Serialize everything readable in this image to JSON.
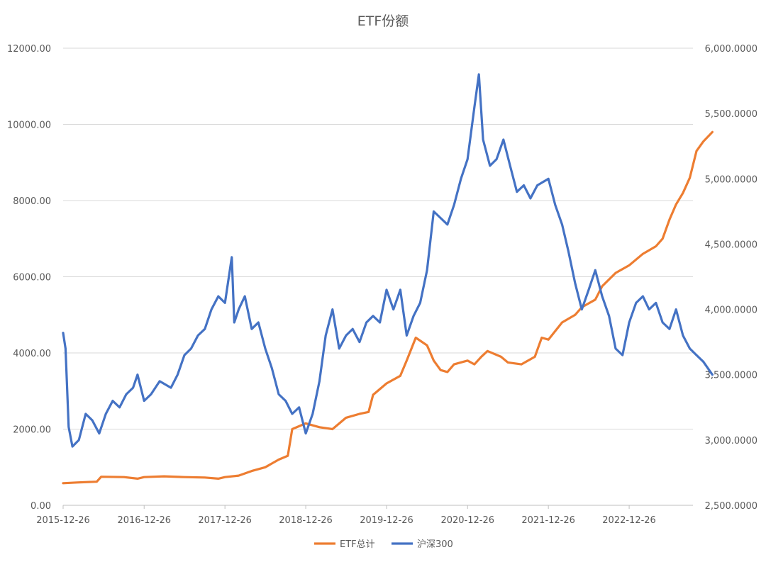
{
  "chart_data": {
    "type": "line",
    "title": "ETF份额",
    "x_ticks": [
      "2015-12-26",
      "2016-12-26",
      "2017-12-26",
      "2018-12-26",
      "2019-12-26",
      "2020-12-26",
      "2021-12-26",
      "2022-12-26"
    ],
    "y_left": {
      "ylim": [
        0,
        12000
      ],
      "ticks": [
        "0.00",
        "2000.00",
        "4000.00",
        "6000.00",
        "8000.00",
        "10000.00",
        "12000.00"
      ]
    },
    "y_right": {
      "ylim": [
        2500,
        6000
      ],
      "ticks": [
        "2,500.0000",
        "3,000.0000",
        "3,500.0000",
        "4,000.0000",
        "4,500.0000",
        "5,000.0000",
        "5,500.0000",
        "6,000.0000"
      ]
    },
    "grid": true,
    "legend_position": "bottom",
    "series": [
      {
        "name": "ETF总计",
        "axis": "left",
        "color": "#ED7D31",
        "points": [
          [
            "2015-12-26",
            580
          ],
          [
            "2016-02-26",
            600
          ],
          [
            "2016-05-26",
            620
          ],
          [
            "2016-06-15",
            750
          ],
          [
            "2016-09-26",
            740
          ],
          [
            "2016-11-26",
            700
          ],
          [
            "2016-12-26",
            740
          ],
          [
            "2017-03-26",
            760
          ],
          [
            "2017-06-26",
            740
          ],
          [
            "2017-09-26",
            730
          ],
          [
            "2017-11-26",
            700
          ],
          [
            "2017-12-26",
            740
          ],
          [
            "2018-02-26",
            780
          ],
          [
            "2018-04-26",
            900
          ],
          [
            "2018-06-26",
            1000
          ],
          [
            "2018-08-26",
            1200
          ],
          [
            "2018-10-06",
            1300
          ],
          [
            "2018-10-26",
            2000
          ],
          [
            "2018-12-26",
            2150
          ],
          [
            "2019-02-26",
            2050
          ],
          [
            "2019-04-26",
            2000
          ],
          [
            "2019-06-26",
            2300
          ],
          [
            "2019-08-26",
            2400
          ],
          [
            "2019-10-06",
            2450
          ],
          [
            "2019-10-26",
            2900
          ],
          [
            "2019-12-26",
            3200
          ],
          [
            "2020-02-26",
            3400
          ],
          [
            "2020-03-26",
            3800
          ],
          [
            "2020-05-06",
            4400
          ],
          [
            "2020-06-26",
            4200
          ],
          [
            "2020-07-26",
            3800
          ],
          [
            "2020-08-26",
            3550
          ],
          [
            "2020-09-26",
            3500
          ],
          [
            "2020-10-26",
            3700
          ],
          [
            "2020-12-26",
            3800
          ],
          [
            "2021-01-26",
            3700
          ],
          [
            "2021-02-26",
            3900
          ],
          [
            "2021-03-26",
            4050
          ],
          [
            "2021-05-26",
            3900
          ],
          [
            "2021-06-26",
            3750
          ],
          [
            "2021-08-26",
            3700
          ],
          [
            "2021-10-26",
            3900
          ],
          [
            "2021-11-26",
            4400
          ],
          [
            "2021-12-26",
            4350
          ],
          [
            "2022-02-26",
            4800
          ],
          [
            "2022-04-26",
            5000
          ],
          [
            "2022-05-26",
            5200
          ],
          [
            "2022-07-26",
            5400
          ],
          [
            "2022-08-26",
            5750
          ],
          [
            "2022-10-26",
            6100
          ],
          [
            "2022-12-26",
            6300
          ],
          [
            "2023-02-26",
            6600
          ],
          [
            "2023-04-26",
            6800
          ],
          [
            "2023-05-26",
            7000
          ],
          [
            "2023-06-26",
            7500
          ],
          [
            "2023-07-26",
            7900
          ],
          [
            "2023-08-26",
            8200
          ],
          [
            "2023-09-26",
            8600
          ],
          [
            "2023-10-26",
            9300
          ],
          [
            "2023-11-26",
            9550
          ],
          [
            "2024-01-06",
            9800
          ]
        ]
      },
      {
        "name": "沪深300",
        "axis": "right",
        "color": "#4472C4",
        "points": [
          [
            "2015-12-26",
            3820
          ],
          [
            "2016-01-06",
            3700
          ],
          [
            "2016-01-20",
            3100
          ],
          [
            "2016-02-06",
            2950
          ],
          [
            "2016-03-06",
            3000
          ],
          [
            "2016-04-06",
            3200
          ],
          [
            "2016-05-06",
            3150
          ],
          [
            "2016-06-06",
            3050
          ],
          [
            "2016-07-06",
            3200
          ],
          [
            "2016-08-06",
            3300
          ],
          [
            "2016-09-06",
            3250
          ],
          [
            "2016-10-06",
            3350
          ],
          [
            "2016-11-06",
            3400
          ],
          [
            "2016-11-26",
            3500
          ],
          [
            "2016-12-26",
            3300
          ],
          [
            "2017-01-26",
            3350
          ],
          [
            "2017-03-06",
            3450
          ],
          [
            "2017-04-26",
            3400
          ],
          [
            "2017-05-26",
            3500
          ],
          [
            "2017-06-26",
            3650
          ],
          [
            "2017-07-26",
            3700
          ],
          [
            "2017-08-26",
            3800
          ],
          [
            "2017-09-26",
            3850
          ],
          [
            "2017-10-26",
            4000
          ],
          [
            "2017-11-26",
            4100
          ],
          [
            "2017-12-26",
            4050
          ],
          [
            "2018-01-26",
            4400
          ],
          [
            "2018-02-06",
            3900
          ],
          [
            "2018-02-26",
            4000
          ],
          [
            "2018-03-26",
            4100
          ],
          [
            "2018-04-26",
            3850
          ],
          [
            "2018-05-26",
            3900
          ],
          [
            "2018-06-26",
            3700
          ],
          [
            "2018-07-26",
            3550
          ],
          [
            "2018-08-26",
            3350
          ],
          [
            "2018-09-26",
            3300
          ],
          [
            "2018-10-26",
            3200
          ],
          [
            "2018-11-26",
            3250
          ],
          [
            "2018-12-26",
            3050
          ],
          [
            "2019-01-26",
            3200
          ],
          [
            "2019-02-26",
            3450
          ],
          [
            "2019-03-26",
            3800
          ],
          [
            "2019-04-26",
            4000
          ],
          [
            "2019-05-26",
            3700
          ],
          [
            "2019-06-26",
            3800
          ],
          [
            "2019-07-26",
            3850
          ],
          [
            "2019-08-26",
            3750
          ],
          [
            "2019-09-26",
            3900
          ],
          [
            "2019-10-26",
            3950
          ],
          [
            "2019-11-26",
            3900
          ],
          [
            "2019-12-26",
            4150
          ],
          [
            "2020-01-26",
            4000
          ],
          [
            "2020-02-26",
            4150
          ],
          [
            "2020-03-26",
            3800
          ],
          [
            "2020-04-26",
            3950
          ],
          [
            "2020-05-26",
            4050
          ],
          [
            "2020-06-26",
            4300
          ],
          [
            "2020-07-26",
            4750
          ],
          [
            "2020-08-26",
            4700
          ],
          [
            "2020-09-26",
            4650
          ],
          [
            "2020-10-26",
            4800
          ],
          [
            "2020-11-26",
            5000
          ],
          [
            "2020-12-26",
            5150
          ],
          [
            "2021-01-26",
            5550
          ],
          [
            "2021-02-15",
            5800
          ],
          [
            "2021-03-06",
            5300
          ],
          [
            "2021-04-06",
            5100
          ],
          [
            "2021-05-06",
            5150
          ],
          [
            "2021-06-06",
            5300
          ],
          [
            "2021-07-06",
            5100
          ],
          [
            "2021-08-06",
            4900
          ],
          [
            "2021-09-06",
            4950
          ],
          [
            "2021-10-06",
            4850
          ],
          [
            "2021-11-06",
            4950
          ],
          [
            "2021-12-26",
            5000
          ],
          [
            "2022-01-26",
            4800
          ],
          [
            "2022-02-26",
            4650
          ],
          [
            "2022-03-26",
            4450
          ],
          [
            "2022-04-26",
            4200
          ],
          [
            "2022-05-26",
            4000
          ],
          [
            "2022-06-26",
            4150
          ],
          [
            "2022-07-26",
            4300
          ],
          [
            "2022-08-26",
            4100
          ],
          [
            "2022-09-26",
            3950
          ],
          [
            "2022-10-26",
            3700
          ],
          [
            "2022-11-26",
            3650
          ],
          [
            "2022-12-26",
            3900
          ],
          [
            "2023-01-26",
            4050
          ],
          [
            "2023-02-26",
            4100
          ],
          [
            "2023-03-26",
            4000
          ],
          [
            "2023-04-26",
            4050
          ],
          [
            "2023-05-26",
            3900
          ],
          [
            "2023-06-26",
            3850
          ],
          [
            "2023-07-26",
            4000
          ],
          [
            "2023-08-26",
            3800
          ],
          [
            "2023-09-26",
            3700
          ],
          [
            "2023-10-26",
            3650
          ],
          [
            "2023-11-26",
            3600
          ],
          [
            "2024-01-06",
            3500
          ]
        ]
      }
    ]
  }
}
